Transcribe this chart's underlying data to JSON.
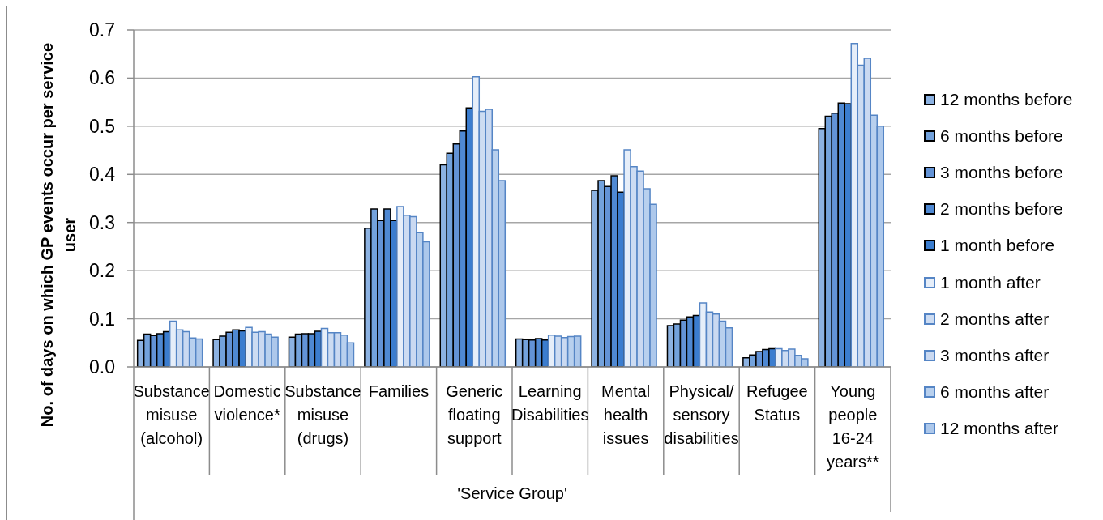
{
  "chart_data": {
    "type": "bar",
    "ylabel": "No. of days on which GP events occur per service user",
    "xlabel": "'Service Group'",
    "categories": [
      "Substance misuse (alcohol)",
      "Domestic violence*",
      "Substance misuse (drugs)",
      "Families",
      "Generic floating support",
      "Learning Disabilities",
      "Mental health issues",
      "Physical/sensory disabilities",
      "Refugee Status",
      "Young people 16-24 years**"
    ],
    "series": [
      {
        "name": "12 months before",
        "color": "#8cb2e2",
        "values": [
          0.055,
          0.057,
          0.062,
          0.288,
          0.42,
          0.058,
          0.367,
          0.086,
          0.019,
          0.495
        ]
      },
      {
        "name": "6 months before",
        "color": "#73a2dc",
        "values": [
          0.068,
          0.064,
          0.068,
          0.328,
          0.444,
          0.057,
          0.387,
          0.089,
          0.025,
          0.521
        ]
      },
      {
        "name": "3 months before",
        "color": "#6393d6",
        "values": [
          0.065,
          0.072,
          0.069,
          0.304,
          0.463,
          0.056,
          0.375,
          0.097,
          0.032,
          0.527
        ]
      },
      {
        "name": "2 months before",
        "color": "#4f89d3",
        "values": [
          0.069,
          0.077,
          0.069,
          0.328,
          0.49,
          0.059,
          0.397,
          0.104,
          0.036,
          0.548
        ]
      },
      {
        "name": "1 month before",
        "color": "#3b7dcf",
        "values": [
          0.073,
          0.075,
          0.074,
          0.304,
          0.538,
          0.056,
          0.363,
          0.107,
          0.038,
          0.547
        ]
      },
      {
        "name": "1 month after",
        "color": "#e6eef9",
        "values": [
          0.095,
          0.082,
          0.08,
          0.333,
          0.603,
          0.066,
          0.451,
          0.133,
          0.038,
          0.672
        ]
      },
      {
        "name": "2 months after",
        "color": "#cddcf2",
        "values": [
          0.077,
          0.072,
          0.071,
          0.315,
          0.531,
          0.064,
          0.416,
          0.114,
          0.034,
          0.627
        ]
      },
      {
        "name": "3 months after",
        "color": "#cad9f1",
        "values": [
          0.073,
          0.073,
          0.071,
          0.312,
          0.535,
          0.061,
          0.407,
          0.11,
          0.037,
          0.641
        ]
      },
      {
        "name": "6 months after",
        "color": "#b8d0ee",
        "values": [
          0.06,
          0.068,
          0.066,
          0.279,
          0.451,
          0.063,
          0.37,
          0.095,
          0.024,
          0.523
        ]
      },
      {
        "name": "12 months after",
        "color": "#adc8eb",
        "values": [
          0.058,
          0.062,
          0.05,
          0.26,
          0.387,
          0.064,
          0.338,
          0.081,
          0.017,
          0.5
        ]
      }
    ],
    "ylim": [
      0,
      0.7
    ],
    "yticks": [
      {
        "value": 0,
        "label": "0.0"
      },
      0.1,
      0.2,
      0.3,
      0.4,
      0.5,
      0.6,
      0.7
    ],
    "grid": "y",
    "legend": "right"
  }
}
